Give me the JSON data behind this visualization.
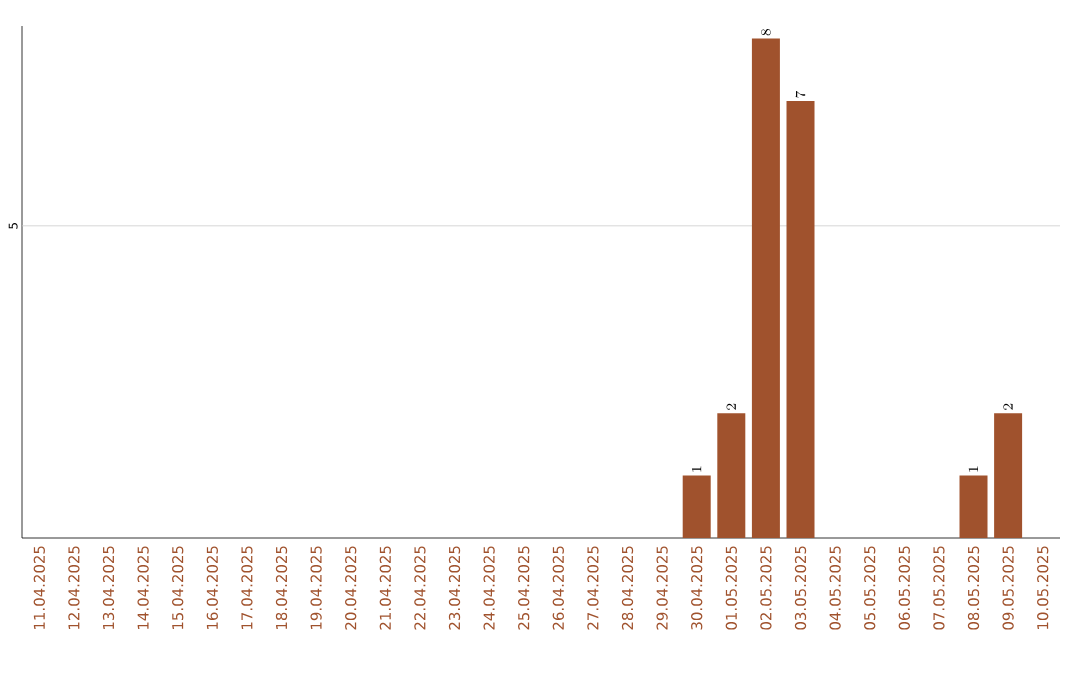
{
  "chart_data": {
    "type": "bar",
    "categories": [
      "11.04.2025",
      "12.04.2025",
      "13.04.2025",
      "14.04.2025",
      "15.04.2025",
      "16.04.2025",
      "17.04.2025",
      "18.04.2025",
      "19.04.2025",
      "20.04.2025",
      "21.04.2025",
      "22.04.2025",
      "23.04.2025",
      "24.04.2025",
      "25.04.2025",
      "26.04.2025",
      "27.04.2025",
      "28.04.2025",
      "29.04.2025",
      "30.04.2025",
      "01.05.2025",
      "02.05.2025",
      "03.05.2025",
      "04.05.2025",
      "05.05.2025",
      "06.05.2025",
      "07.05.2025",
      "08.05.2025",
      "09.05.2025",
      "10.05.2025"
    ],
    "values": [
      null,
      null,
      null,
      null,
      null,
      null,
      null,
      null,
      null,
      null,
      null,
      null,
      null,
      null,
      null,
      null,
      null,
      null,
      null,
      1,
      2,
      8,
      7,
      null,
      null,
      null,
      null,
      1,
      2,
      null
    ],
    "data_labels": true,
    "color": "#a0522d",
    "ref_lines": [
      {
        "axis": "y",
        "value": 5,
        "label": "5",
        "color": "#cccccc"
      }
    ]
  }
}
